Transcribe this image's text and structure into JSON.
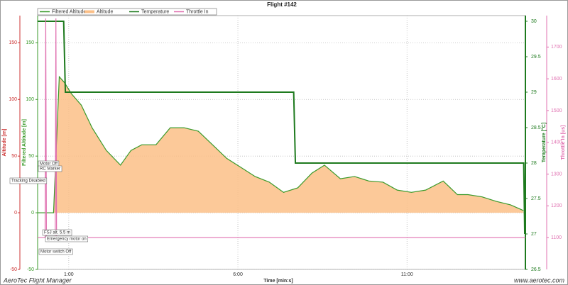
{
  "chart_data": {
    "type": "line",
    "title": "Flight #142",
    "xlabel": "Time [min:s]",
    "xlim": [
      0.08,
      14.5
    ],
    "xticks": [
      {
        "value": 1,
        "label": "1:00"
      },
      {
        "value": 6,
        "label": "6:00"
      },
      {
        "value": 11,
        "label": "11:00"
      }
    ],
    "grid": true,
    "legend": "top-left",
    "axes": {
      "y": {
        "label": "Altitude [m]",
        "color": "#cc3333",
        "lim": [
          -50,
          174
        ],
        "ticks": [
          -50,
          0,
          50,
          100,
          150
        ]
      },
      "yf": {
        "label": "Filtered Altitude [m]",
        "color": "#3a9a2a",
        "lim": [
          -50,
          174
        ],
        "ticks": [
          -50,
          0,
          50,
          100,
          150
        ]
      },
      "y2": {
        "label": "Temperature [°C]",
        "color": "#1e7a1e",
        "lim": [
          26.5,
          30.08
        ],
        "ticks": [
          26.5,
          27.0,
          27.5,
          28.0,
          28.5,
          29.0,
          29.5,
          30.0
        ]
      },
      "y3": {
        "label": "Throttle In [us]",
        "color": "#e070b0",
        "lim": [
          1000,
          1799
        ],
        "ticks": [
          1100,
          1200,
          1300,
          1400,
          1500,
          1600,
          1700
        ]
      }
    },
    "series": [
      {
        "name": "Filtered Altitude",
        "color": "#3a9a2a",
        "axis": "yf",
        "x": [
          0.08,
          0.55,
          0.72,
          0.87,
          1.08,
          1.37,
          1.69,
          2.11,
          2.53,
          2.84,
          3.16,
          3.58,
          4.0,
          4.41,
          4.83,
          5.25,
          5.67,
          6.09,
          6.51,
          6.93,
          7.35,
          7.77,
          8.19,
          8.56,
          9.03,
          9.45,
          9.87,
          10.29,
          10.71,
          11.13,
          11.55,
          12.07,
          12.49,
          12.8,
          13.22,
          13.64,
          14.06,
          14.44
        ],
        "values": [
          0,
          0,
          120,
          115,
          105,
          95,
          75,
          55,
          42,
          55,
          60,
          60,
          75,
          75,
          72,
          60,
          48,
          40,
          32,
          27,
          18,
          22,
          35,
          42,
          30,
          32,
          28,
          27,
          20,
          18,
          20,
          28,
          16,
          16,
          14,
          10,
          7,
          2
        ]
      },
      {
        "name": "Altitude",
        "color": "#fbbf87",
        "axis": "y",
        "x": [
          0.08,
          0.55,
          0.72,
          0.87,
          1.08,
          1.37,
          1.69,
          2.11,
          2.53,
          2.84,
          3.16,
          3.58,
          4.0,
          4.41,
          4.83,
          5.25,
          5.67,
          6.09,
          6.51,
          6.93,
          7.35,
          7.77,
          8.19,
          8.56,
          9.03,
          9.45,
          9.87,
          10.29,
          10.71,
          11.13,
          11.55,
          12.07,
          12.49,
          12.8,
          13.22,
          13.64,
          14.06,
          14.44
        ],
        "values": [
          0,
          0,
          120,
          115,
          105,
          95,
          75,
          55,
          42,
          55,
          60,
          60,
          75,
          75,
          72,
          60,
          48,
          40,
          32,
          27,
          18,
          22,
          35,
          42,
          30,
          32,
          28,
          27,
          20,
          18,
          20,
          28,
          16,
          16,
          14,
          10,
          7,
          2
        ]
      },
      {
        "name": "Temperature",
        "color": "#1e7a1e",
        "axis": "y2",
        "x": [
          0.08,
          0.85,
          0.9,
          7.65,
          7.7,
          14.45,
          14.48
        ],
        "values": [
          30.0,
          30.0,
          29.0,
          29.0,
          28.0,
          28.0,
          27.0
        ]
      },
      {
        "name": "Throttle In",
        "color": "#e070b0",
        "axis": "y3",
        "x": [
          0.08,
          0.3,
          0.32,
          0.34,
          0.6,
          0.62,
          0.64,
          14.5
        ],
        "values": [
          1100,
          1100,
          1790,
          1100,
          1100,
          1790,
          1100,
          1100
        ]
      }
    ],
    "annotations": [
      "Motor Off",
      "RC Marker",
      "Tracking Disabled",
      "FSJ alt. 5.5 m",
      "Emergency motor on",
      "Motor switch Off"
    ],
    "footer_left": "AeroTec Flight Manager",
    "footer_right": "www.aerotec.com"
  }
}
